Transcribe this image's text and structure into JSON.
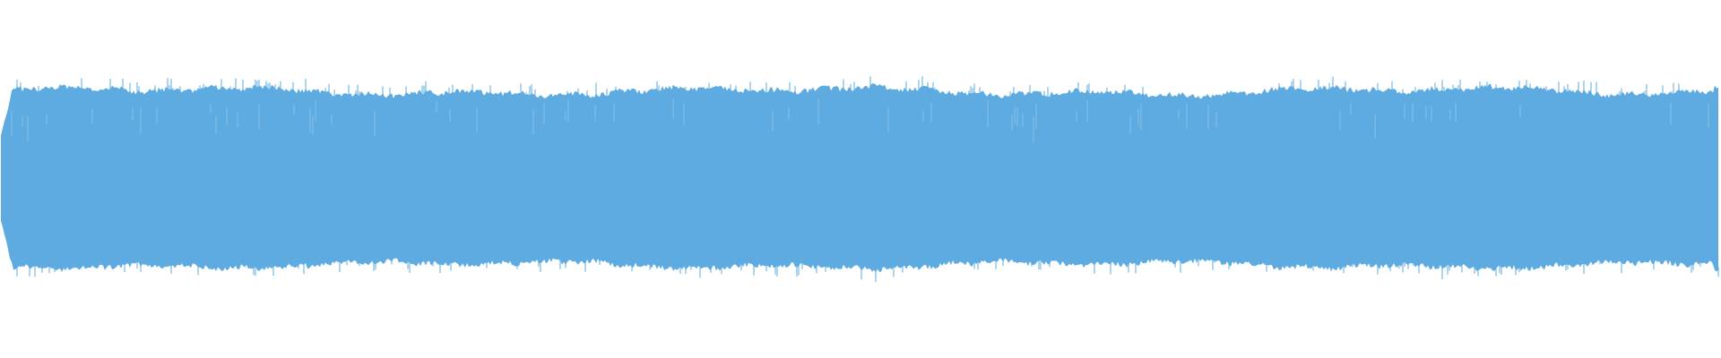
{
  "waveform": {
    "color": "#5dabe1"
  }
}
